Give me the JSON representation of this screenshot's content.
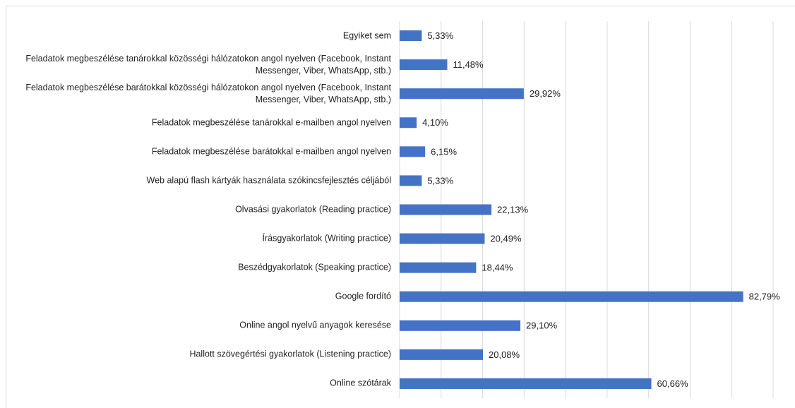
{
  "chart_data": {
    "type": "barh",
    "categories": [
      "Egyiket sem",
      "Feladatok megbeszélése tanárokkal közösségi hálózatokon angol nyelven (Facebook, Instant Messenger, Viber, WhatsApp, stb.)",
      "Feladatok megbeszélése barátokkal közösségi hálózatokon angol nyelven (Facebook, Instant Messenger, Viber, WhatsApp, stb.)",
      "Feladatok megbeszélése tanárokkal e-mailben angol nyelven",
      "Feladatok megbeszélése barátokkal e-mailben angol nyelven",
      "Web alapú flash kártyák használata szókincsfejlesztés céljából",
      "Olvasási gyakorlatok (Reading practice)",
      "Írásgyakorlatok (Writing practice)",
      "Beszédgyakorlatok (Speaking practice)",
      "Google fordító",
      "Online angol nyelvű anyagok keresése",
      "Hallott szövegértési gyakorlatok (Listening practice)",
      "Online szótárak"
    ],
    "values": [
      5.33,
      11.48,
      29.92,
      4.1,
      6.15,
      5.33,
      22.13,
      20.49,
      18.44,
      82.79,
      29.1,
      20.08,
      60.66
    ],
    "value_labels": [
      "5,33%",
      "11,48%",
      "29,92%",
      "4,10%",
      "6,15%",
      "5,33%",
      "22,13%",
      "20,49%",
      "18,44%",
      "82,79%",
      "29,10%",
      "20,08%",
      "60,66%"
    ],
    "color": "#4472c4",
    "xlim": [
      0,
      90
    ],
    "xticks": [
      0,
      10,
      20,
      30,
      40,
      50,
      60,
      70,
      80,
      90
    ],
    "grid": true
  }
}
